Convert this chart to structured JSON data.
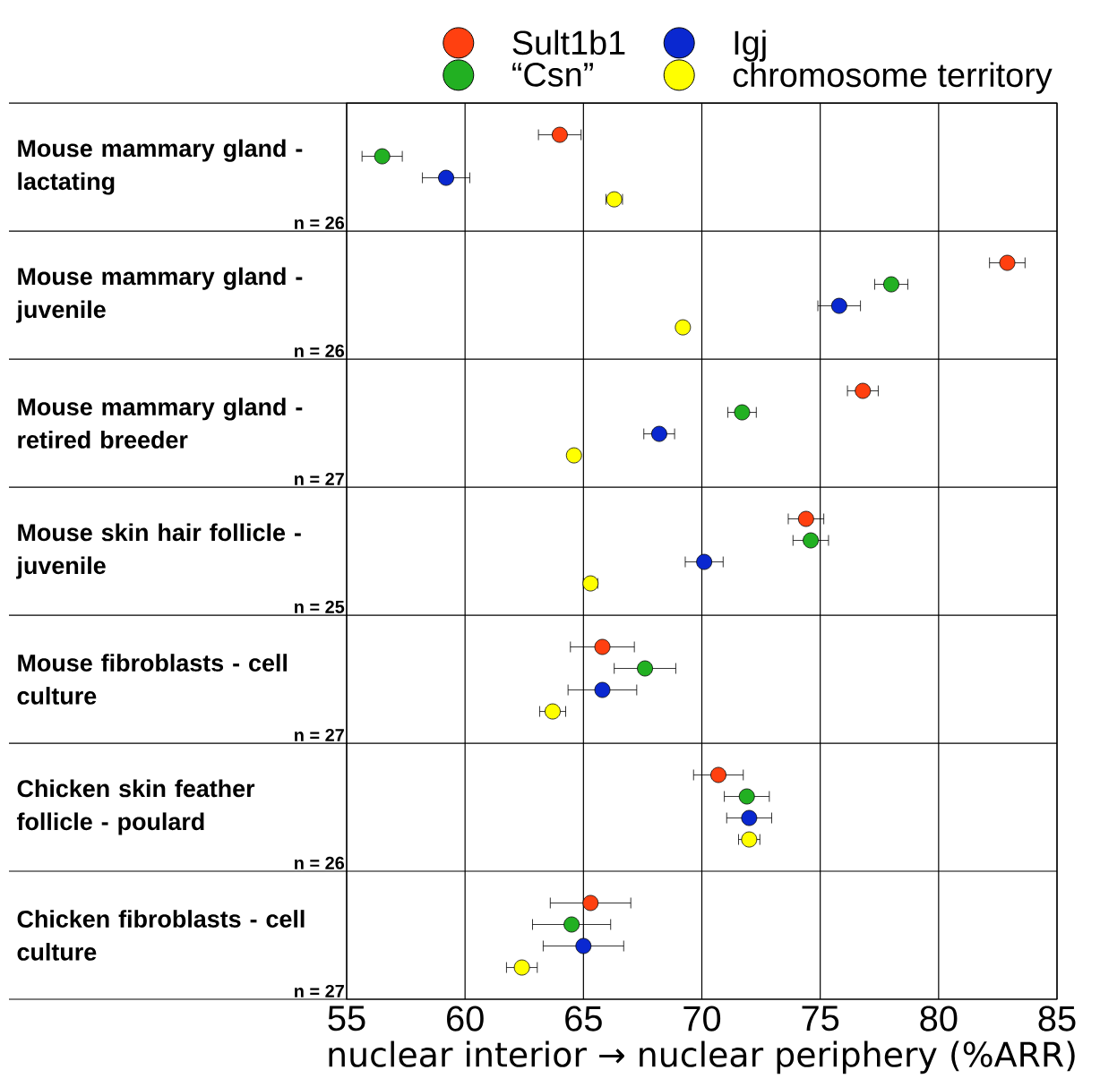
{
  "chart_data": {
    "type": "scatter",
    "orientation": "horizontal",
    "grid": "x",
    "legend": "top",
    "categories": [
      "Mouse mammary gland - lactating",
      "Mouse mammary gland - juvenile",
      "Mouse mammary gland - retired breeder",
      "Mouse skin hair follicle - juvenile",
      "Mouse fibroblasts - cell culture",
      "Chicken skin feather follicle - poulard",
      "Chicken fibroblasts - cell culture"
    ],
    "series": [
      {
        "name": "Sult1b1",
        "color": "#ff4010",
        "values": [
          64.0,
          82.9,
          76.8,
          74.4,
          65.8,
          70.7,
          65.3
        ],
        "errors": [
          0.9,
          0.75,
          0.65,
          0.75,
          1.35,
          1.05,
          1.7
        ]
      },
      {
        "name": "“Csn”",
        "color": "#22b022",
        "values": [
          56.5,
          78.0,
          71.7,
          74.6,
          67.6,
          71.9,
          64.5
        ],
        "errors": [
          0.85,
          0.7,
          0.6,
          0.75,
          1.3,
          0.95,
          1.65
        ]
      },
      {
        "name": "Igj",
        "color": "#0a28d0",
        "values": [
          59.2,
          75.8,
          68.2,
          70.1,
          65.8,
          72.0,
          65.0
        ],
        "errors": [
          1.0,
          0.9,
          0.65,
          0.8,
          1.45,
          0.95,
          1.7
        ]
      },
      {
        "name": "chromosome territory",
        "color": "#ffff00",
        "values": [
          66.3,
          69.2,
          64.6,
          65.3,
          63.7,
          72.0,
          62.4
        ],
        "errors": [
          0.35,
          null,
          null,
          0.3,
          0.55,
          0.45,
          0.65
        ]
      }
    ],
    "xlim": [
      55,
      85
    ],
    "xticks": [
      55,
      60,
      65,
      70,
      75,
      80,
      85
    ],
    "xlabel": "nuclear interior → nuclear periphery (%ARR)",
    "annotations": [
      "n = 26",
      "n = 26",
      "n = 27",
      "n = 25",
      "n = 27",
      "n = 26",
      "n = 27"
    ]
  }
}
